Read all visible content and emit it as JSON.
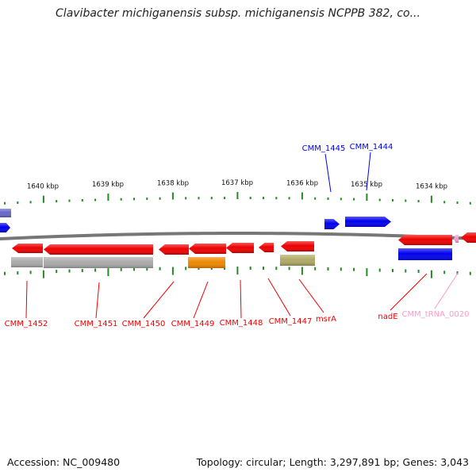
{
  "title": "Clavibacter michiganensis subsp. michiganensis NCPPB 382, co...",
  "accession": "Accession: NC_009480",
  "topology": "Topology: circular; Length: 3,297,891 bp; Genes: 3,043",
  "colors": {
    "red": "#ee0000",
    "blue": "#0000ee",
    "gray": "#aaaaaa",
    "orange": "#ee8800",
    "olive": "#b0aa66",
    "pink": "#ff99cc",
    "purple": "#6666cc",
    "tick": "#228b22",
    "backbone": "#777777"
  },
  "scale": {
    "ticks": [
      "1640 kbp",
      "1639 kbp",
      "1638 kbp",
      "1637 kbp",
      "1636 kbp",
      "1635 kbp",
      "1634 kbp"
    ]
  },
  "labels": {
    "above": [
      {
        "text": "CMM_1445",
        "color": "blue"
      },
      {
        "text": "CMM_1444",
        "color": "blue"
      }
    ],
    "below": [
      {
        "text": "CMM_1452",
        "color": "red"
      },
      {
        "text": "CMM_1451",
        "color": "red"
      },
      {
        "text": "CMM_1450",
        "color": "red"
      },
      {
        "text": "CMM_1449",
        "color": "red"
      },
      {
        "text": "CMM_1448",
        "color": "red"
      },
      {
        "text": "CMM_1447",
        "color": "red"
      },
      {
        "text": "msrA",
        "color": "red"
      },
      {
        "text": "nadE",
        "color": "red"
      },
      {
        "text": "CMM_tRNA_0020",
        "color": "pink"
      }
    ]
  }
}
